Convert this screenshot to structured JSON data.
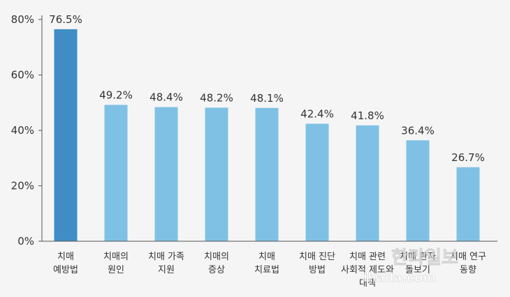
{
  "chart_data": {
    "type": "bar",
    "categories": [
      [
        "치매",
        "예방법"
      ],
      [
        "치매의",
        "원인"
      ],
      [
        "치매 가족",
        "지원"
      ],
      [
        "치매의",
        "증상"
      ],
      [
        "치매",
        "치료법"
      ],
      [
        "치매 진단",
        "방법"
      ],
      [
        "치매 관련",
        "사회적 제도와",
        "대책"
      ],
      [
        "치매 환자",
        "돌보기"
      ],
      [
        "치매 연구",
        "동향"
      ]
    ],
    "values": [
      76.5,
      49.2,
      48.4,
      48.2,
      48.1,
      42.4,
      41.8,
      36.4,
      26.7
    ],
    "value_labels": [
      "76.5%",
      "49.2%",
      "48.4%",
      "48.2%",
      "48.1%",
      "42.4%",
      "41.8%",
      "36.4%",
      "26.7%"
    ],
    "highlight_index": 0,
    "ylim": [
      0,
      80
    ],
    "yticks": [
      0,
      20,
      40,
      60,
      80
    ],
    "ytick_labels": [
      "0%",
      "20%",
      "40%",
      "60%",
      "80%"
    ],
    "title": "",
    "xlabel": "",
    "ylabel": "",
    "grid": false,
    "colors": {
      "highlight": "#3f8dc4",
      "bar": "#7fc1e4",
      "axis": "#555555",
      "text": "#333333"
    }
  },
  "watermark": {
    "line1": "한라일보",
    "line2": "ihalla.com"
  }
}
